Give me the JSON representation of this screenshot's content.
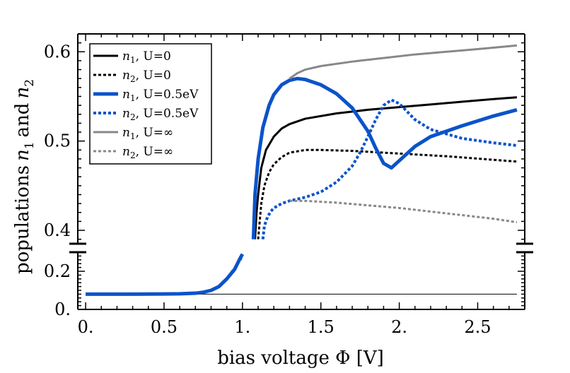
{
  "chart_data": {
    "type": "line",
    "title": "",
    "xlabel": "bias voltage Φ [V]",
    "ylabel": "populations n1 and n2",
    "xlim": [
      -0.05,
      2.8
    ],
    "ylim_upper": [
      0.385,
      0.62
    ],
    "ylim_lower": [
      0.0,
      0.3
    ],
    "x_ticks": [
      {
        "value": 0.0,
        "label": "0."
      },
      {
        "value": 0.5,
        "label": "0.5"
      },
      {
        "value": 1.0,
        "label": "1."
      },
      {
        "value": 1.5,
        "label": "1.5"
      },
      {
        "value": 2.0,
        "label": "2."
      },
      {
        "value": 2.5,
        "label": "2.5"
      }
    ],
    "y_ticks_upper": [
      {
        "value": 0.4,
        "label": "0.4"
      },
      {
        "value": 0.5,
        "label": "0.5"
      },
      {
        "value": 0.6,
        "label": "0.6"
      }
    ],
    "y_ticks_lower": [
      {
        "value": 0.0,
        "label": "0."
      },
      {
        "value": 0.2,
        "label": "0.2"
      }
    ],
    "axis_break": "between 0.3 and 0.385",
    "reference_line": {
      "y": 0.08,
      "x_from": 0.0,
      "x_to": 2.75
    },
    "legend_position": "top-left",
    "low_bias_region": {
      "x": [
        0.0,
        0.3,
        0.5,
        0.6,
        0.7,
        0.75,
        0.8,
        0.85,
        0.9,
        0.95,
        0.98,
        1.0
      ],
      "y": [
        0.08,
        0.08,
        0.081,
        0.082,
        0.085,
        0.09,
        0.1,
        0.12,
        0.16,
        0.21,
        0.26,
        0.29
      ],
      "y_dashed": [
        0.08,
        0.08,
        0.081,
        0.082,
        0.085,
        0.09,
        0.1,
        0.12,
        0.16,
        0.215,
        0.255,
        0.28
      ],
      "color": "#0b53c9"
    },
    "series": [
      {
        "name": "n1, U=0",
        "var": "n",
        "sub": "1",
        "cond": ", U=0",
        "color": "#000000",
        "dash": "solid",
        "width": 3,
        "x": [
          1.08,
          1.09,
          1.1,
          1.12,
          1.15,
          1.2,
          1.25,
          1.3,
          1.4,
          1.6,
          1.8,
          2.0,
          2.2,
          2.4,
          2.6,
          2.75
        ],
        "y": [
          0.39,
          0.42,
          0.44,
          0.47,
          0.49,
          0.505,
          0.514,
          0.519,
          0.525,
          0.531,
          0.535,
          0.538,
          0.541,
          0.544,
          0.547,
          0.549
        ]
      },
      {
        "name": "n2, U=0",
        "var": "n",
        "sub": "2",
        "cond": ", U=0",
        "color": "#000000",
        "dash": "dotted",
        "width": 3,
        "x": [
          1.1,
          1.11,
          1.12,
          1.14,
          1.17,
          1.2,
          1.25,
          1.3,
          1.4,
          1.5,
          1.7,
          2.0,
          2.3,
          2.6,
          2.75
        ],
        "y": [
          0.39,
          0.41,
          0.43,
          0.45,
          0.465,
          0.474,
          0.482,
          0.487,
          0.49,
          0.49,
          0.489,
          0.486,
          0.483,
          0.479,
          0.477
        ]
      },
      {
        "name": "n1, U=0.5eV",
        "var": "n",
        "sub": "1",
        "cond": ", U=0.5eV",
        "color": "#0b53c9",
        "dash": "solid",
        "width": 5,
        "x": [
          1.07,
          1.08,
          1.1,
          1.13,
          1.17,
          1.2,
          1.25,
          1.3,
          1.35,
          1.4,
          1.5,
          1.6,
          1.7,
          1.8,
          1.85,
          1.9,
          1.95,
          2.0,
          2.1,
          2.2,
          2.4,
          2.6,
          2.75
        ],
        "y": [
          0.39,
          0.44,
          0.48,
          0.515,
          0.54,
          0.552,
          0.563,
          0.568,
          0.57,
          0.569,
          0.563,
          0.553,
          0.537,
          0.511,
          0.492,
          0.475,
          0.47,
          0.478,
          0.494,
          0.505,
          0.517,
          0.528,
          0.535
        ]
      },
      {
        "name": "n2, U=0.5eV",
        "var": "n",
        "sub": "2",
        "cond": ", U=0.5eV",
        "color": "#0b53c9",
        "dash": "dotted",
        "width": 4,
        "x": [
          1.13,
          1.14,
          1.16,
          1.18,
          1.2,
          1.25,
          1.3,
          1.4,
          1.5,
          1.6,
          1.7,
          1.75,
          1.8,
          1.85,
          1.9,
          1.95,
          2.0,
          2.05,
          2.1,
          2.2,
          2.4,
          2.6,
          2.75
        ],
        "y": [
          0.39,
          0.405,
          0.415,
          0.421,
          0.425,
          0.43,
          0.433,
          0.437,
          0.443,
          0.454,
          0.472,
          0.487,
          0.505,
          0.524,
          0.54,
          0.546,
          0.542,
          0.533,
          0.524,
          0.513,
          0.503,
          0.498,
          0.495
        ]
      },
      {
        "name": "n1, U=∞",
        "var": "n",
        "sub": "1",
        "cond": ", U=∞",
        "color": "#888888",
        "dash": "solid",
        "width": 3,
        "x": [
          1.3,
          1.35,
          1.4,
          1.5,
          1.7,
          1.9,
          2.1,
          2.3,
          2.5,
          2.75
        ],
        "y": [
          0.57,
          0.576,
          0.58,
          0.584,
          0.589,
          0.593,
          0.597,
          0.6,
          0.603,
          0.607
        ]
      },
      {
        "name": "n2, U=∞",
        "var": "n",
        "sub": "2",
        "cond": ", U=∞",
        "color": "#888888",
        "dash": "dotted",
        "width": 3,
        "x": [
          1.3,
          1.4,
          1.6,
          1.8,
          2.0,
          2.2,
          2.4,
          2.6,
          2.75
        ],
        "y": [
          0.433,
          0.433,
          0.431,
          0.428,
          0.425,
          0.421,
          0.417,
          0.413,
          0.409
        ]
      }
    ]
  }
}
